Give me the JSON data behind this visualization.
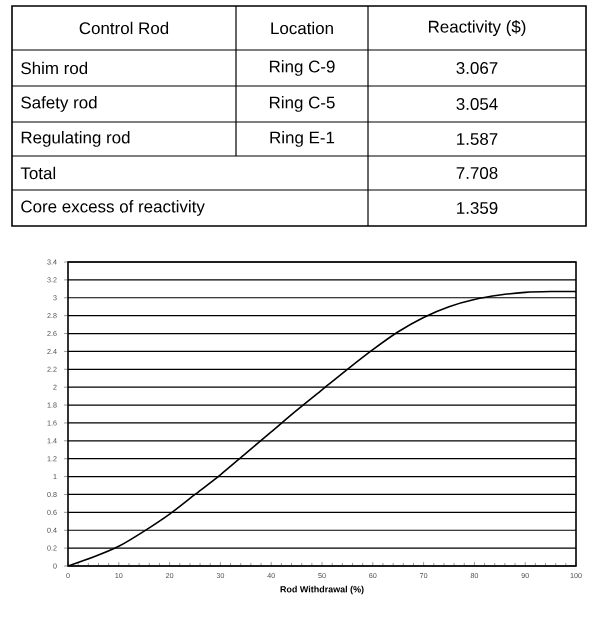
{
  "chart_data": [
    {
      "type": "other",
      "annotations": [
        "Control Rod",
        "Location",
        "Reactivity ($)",
        "Shim rod",
        "Ring C-9",
        "3.067",
        "Safety rod",
        "Ring C-5",
        "3.054",
        "Regulating rod",
        "Ring E-1",
        "1.587",
        "Total",
        "7.708",
        "Core excess of reactivity",
        "1.359"
      ]
    },
    {
      "type": "line",
      "xlabel": "**Rod Withdrawal (%)**",
      "x": [
        0,
        5,
        10,
        15,
        20,
        25,
        30,
        35,
        40,
        45,
        50,
        55,
        60,
        65,
        70,
        75,
        80,
        85,
        90,
        95,
        100
      ],
      "series": [
        {
          "color": "#000000",
          "values": [
            0,
            0.1,
            0.22,
            0.39,
            0.58,
            0.8,
            1.02,
            1.26,
            1.5,
            1.74,
            1.97,
            2.2,
            2.42,
            2.62,
            2.78,
            2.9,
            2.98,
            3.03,
            3.06,
            3.07,
            3.07
          ]
        }
      ],
      "xlim": [
        0,
        100
      ],
      "ylim": [
        0,
        3.4
      ],
      "xticks": [
        0,
        10,
        20,
        30,
        40,
        50,
        60,
        70,
        80,
        90,
        100
      ],
      "yticks": [
        0,
        0.2,
        0.4,
        0.6,
        0.8,
        1,
        1.2,
        1.4,
        1.6,
        1.8,
        2,
        2.2,
        2.4,
        2.6,
        2.8,
        3,
        3.2,
        3.4
      ],
      "grid": "y",
      "marker": "none",
      "line_style": "solid"
    }
  ]
}
